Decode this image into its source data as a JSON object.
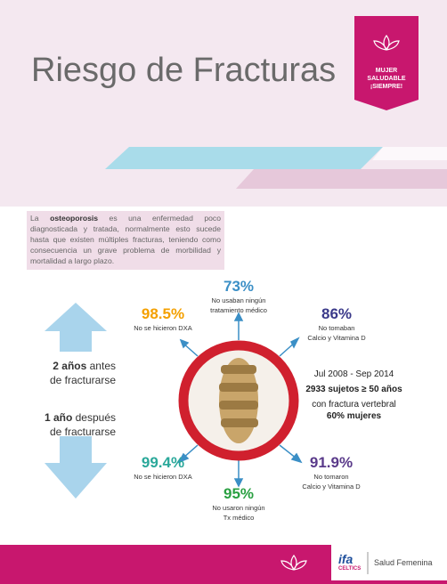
{
  "header": {
    "title": "Riesgo de Fracturas",
    "badge": [
      "MUJER",
      "SALUDABLE",
      "¡SIEMPRE!"
    ]
  },
  "intro": {
    "before": "La ",
    "bold": "osteoporosis",
    "after": " es una enfermedad poco diagnosticada y tratada, normalmente esto sucede hasta que existen múltiples fracturas, teniendo como consecuencia un grave problema de morbilidad y mortalidad a largo plazo."
  },
  "timeline": [
    {
      "bold": "2 años",
      "lines": [
        " antes",
        "de fracturarse"
      ]
    },
    {
      "bold": "1 año",
      "lines": [
        " después",
        "de fracturarse"
      ]
    }
  ],
  "stats": [
    {
      "value": "73%",
      "lines": [
        "No usaban ningún",
        "tratamiento médico"
      ]
    },
    {
      "value": "98.5%",
      "lines": [
        "No se hicieron DXA"
      ]
    },
    {
      "value": "86%",
      "lines": [
        "No tomaban",
        "Calcio y Vitamina D"
      ]
    },
    {
      "value": "99.4%",
      "lines": [
        "No se hicieron DXA"
      ]
    },
    {
      "value": "91.9%",
      "lines": [
        "No tomaron",
        "Calcio y Vitamina D"
      ]
    },
    {
      "value": "95%",
      "lines": [
        "No usaron ningún",
        "Tx médico"
      ]
    }
  ],
  "study": [
    "Jul 2008 - Sep 2014",
    "2933 sujetos ≥ 50 años",
    "con fractura vertebral",
    "60% mujeres"
  ],
  "footer": {
    "logo": "ifa",
    "logo_sub": "CELTICS",
    "label": "Salud Femenina"
  }
}
